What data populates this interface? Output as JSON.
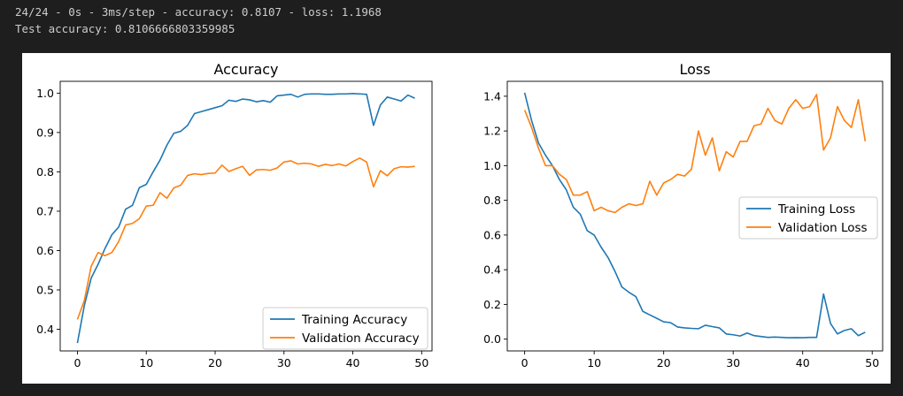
{
  "console": {
    "lines": [
      "24/24 - 0s - 3ms/step - accuracy: 0.8107 - loss: 1.1968",
      "Test accuracy: 0.8106666803359985"
    ]
  },
  "colors": {
    "training": "#1f77b4",
    "validation": "#ff7f0e",
    "console_bg": "#1e1e1e",
    "console_text": "#cccccc"
  },
  "chart_data": [
    {
      "type": "line",
      "title": "Accuracy",
      "xlabel": "",
      "ylabel": "",
      "xlim": [
        -2.5,
        51.5
      ],
      "ylim": [
        0.345,
        1.03
      ],
      "xticks": [
        0,
        10,
        20,
        30,
        40,
        50
      ],
      "yticks": [
        0.4,
        0.5,
        0.6,
        0.7,
        0.8,
        0.9,
        1.0
      ],
      "ytick_labels": [
        "0.4",
        "0.5",
        "0.6",
        "0.7",
        "0.8",
        "0.9",
        "1.0"
      ],
      "legend": "lower-right",
      "grid": false,
      "x": [
        0,
        1,
        2,
        3,
        4,
        5,
        6,
        7,
        8,
        9,
        10,
        11,
        12,
        13,
        14,
        15,
        16,
        17,
        18,
        19,
        20,
        21,
        22,
        23,
        24,
        25,
        26,
        27,
        28,
        29,
        30,
        31,
        32,
        33,
        34,
        35,
        36,
        37,
        38,
        39,
        40,
        41,
        42,
        43,
        44,
        45,
        46,
        47,
        48,
        49
      ],
      "series": [
        {
          "name": "Training Accuracy",
          "color": "#1f77b4",
          "values": [
            0.365,
            0.46,
            0.53,
            0.565,
            0.605,
            0.64,
            0.66,
            0.705,
            0.715,
            0.76,
            0.768,
            0.8,
            0.83,
            0.868,
            0.898,
            0.903,
            0.918,
            0.948,
            0.953,
            0.958,
            0.963,
            0.968,
            0.982,
            0.979,
            0.985,
            0.983,
            0.978,
            0.981,
            0.977,
            0.993,
            0.995,
            0.997,
            0.99,
            0.997,
            0.998,
            0.998,
            0.997,
            0.997,
            0.998,
            0.998,
            0.999,
            0.998,
            0.997,
            0.918,
            0.97,
            0.99,
            0.985,
            0.98,
            0.995,
            0.987
          ]
        },
        {
          "name": "Validation Accuracy",
          "color": "#ff7f0e",
          "values": [
            0.425,
            0.473,
            0.56,
            0.595,
            0.587,
            0.595,
            0.623,
            0.665,
            0.669,
            0.681,
            0.713,
            0.715,
            0.747,
            0.733,
            0.759,
            0.766,
            0.791,
            0.795,
            0.793,
            0.796,
            0.797,
            0.817,
            0.801,
            0.808,
            0.814,
            0.791,
            0.805,
            0.806,
            0.804,
            0.81,
            0.825,
            0.828,
            0.82,
            0.822,
            0.82,
            0.814,
            0.819,
            0.816,
            0.82,
            0.815,
            0.826,
            0.835,
            0.825,
            0.762,
            0.803,
            0.79,
            0.808,
            0.813,
            0.812,
            0.814
          ]
        }
      ]
    },
    {
      "type": "line",
      "title": "Loss",
      "xlabel": "",
      "ylabel": "",
      "xlim": [
        -2.5,
        51.5
      ],
      "ylim": [
        -0.068,
        1.486
      ],
      "xticks": [
        0,
        10,
        20,
        30,
        40,
        50
      ],
      "yticks": [
        0.0,
        0.2,
        0.4,
        0.6,
        0.8,
        1.0,
        1.2,
        1.4
      ],
      "ytick_labels": [
        "0.0",
        "0.2",
        "0.4",
        "0.6",
        "0.8",
        "1.0",
        "1.2",
        "1.4"
      ],
      "legend": "center-right",
      "grid": false,
      "x": [
        0,
        1,
        2,
        3,
        4,
        5,
        6,
        7,
        8,
        9,
        10,
        11,
        12,
        13,
        14,
        15,
        16,
        17,
        18,
        19,
        20,
        21,
        22,
        23,
        24,
        25,
        26,
        27,
        28,
        29,
        30,
        31,
        32,
        33,
        34,
        35,
        36,
        37,
        38,
        39,
        40,
        41,
        42,
        43,
        44,
        45,
        46,
        47,
        48,
        49
      ],
      "series": [
        {
          "name": "Training Loss",
          "color": "#1f77b4",
          "values": [
            1.42,
            1.26,
            1.13,
            1.06,
            1.0,
            0.92,
            0.86,
            0.76,
            0.72,
            0.625,
            0.6,
            0.53,
            0.47,
            0.39,
            0.3,
            0.27,
            0.245,
            0.16,
            0.14,
            0.12,
            0.1,
            0.095,
            0.07,
            0.065,
            0.062,
            0.06,
            0.08,
            0.072,
            0.065,
            0.03,
            0.025,
            0.018,
            0.035,
            0.02,
            0.015,
            0.01,
            0.012,
            0.01,
            0.008,
            0.009,
            0.008,
            0.01,
            0.01,
            0.26,
            0.09,
            0.03,
            0.05,
            0.06,
            0.02,
            0.04
          ]
        },
        {
          "name": "Validation Loss",
          "color": "#ff7f0e",
          "values": [
            1.32,
            1.22,
            1.1,
            1.0,
            1.0,
            0.95,
            0.92,
            0.83,
            0.83,
            0.85,
            0.74,
            0.76,
            0.74,
            0.73,
            0.76,
            0.78,
            0.77,
            0.78,
            0.91,
            0.83,
            0.9,
            0.92,
            0.95,
            0.94,
            0.98,
            1.2,
            1.06,
            1.16,
            0.97,
            1.08,
            1.05,
            1.14,
            1.14,
            1.23,
            1.24,
            1.33,
            1.26,
            1.24,
            1.33,
            1.38,
            1.33,
            1.34,
            1.41,
            1.09,
            1.16,
            1.34,
            1.26,
            1.22,
            1.38,
            1.14
          ]
        }
      ]
    }
  ]
}
